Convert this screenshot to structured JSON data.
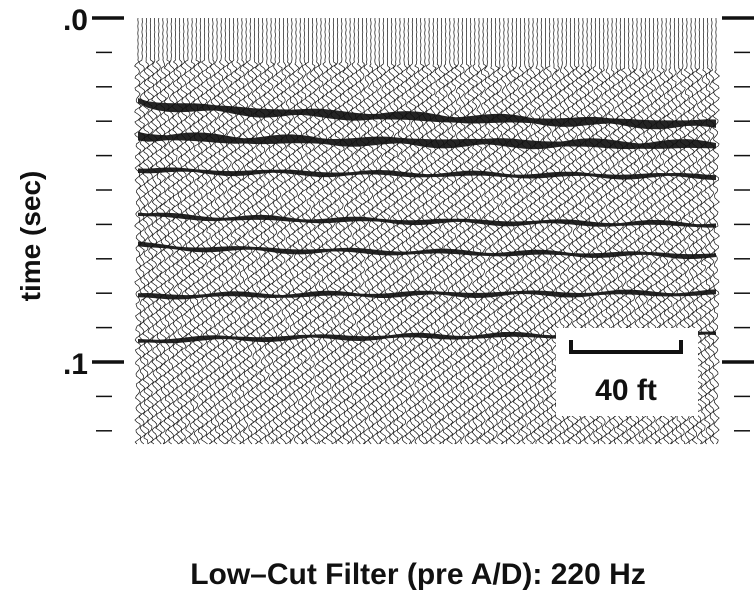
{
  "chart_data": {
    "type": "seismogram",
    "ylabel": "time (sec)",
    "yticks": [
      {
        "value": 0.0,
        "label": ".0"
      },
      {
        "value": 0.1,
        "label": ".1"
      }
    ],
    "minor_tick_interval": 0.01,
    "ylim": [
      0.0,
      0.12
    ],
    "scale_bar": {
      "label": "40 ft",
      "length_ft": 40
    },
    "caption": "Low–Cut Filter (pre A/D): 220 Hz",
    "reflectors": [
      {
        "time_start": 0.024,
        "time_end": 0.031
      },
      {
        "time_start": 0.034,
        "time_end": 0.037
      },
      {
        "time_start": 0.044,
        "time_end": 0.046
      },
      {
        "time_start": 0.057,
        "time_end": 0.06
      },
      {
        "time_start": 0.066,
        "time_end": 0.069
      },
      {
        "time_start": 0.081,
        "time_end": 0.08
      },
      {
        "time_start": 0.094,
        "time_end": 0.092
      }
    ],
    "colors": {
      "ink": "#111111",
      "background": "#ffffff"
    }
  }
}
